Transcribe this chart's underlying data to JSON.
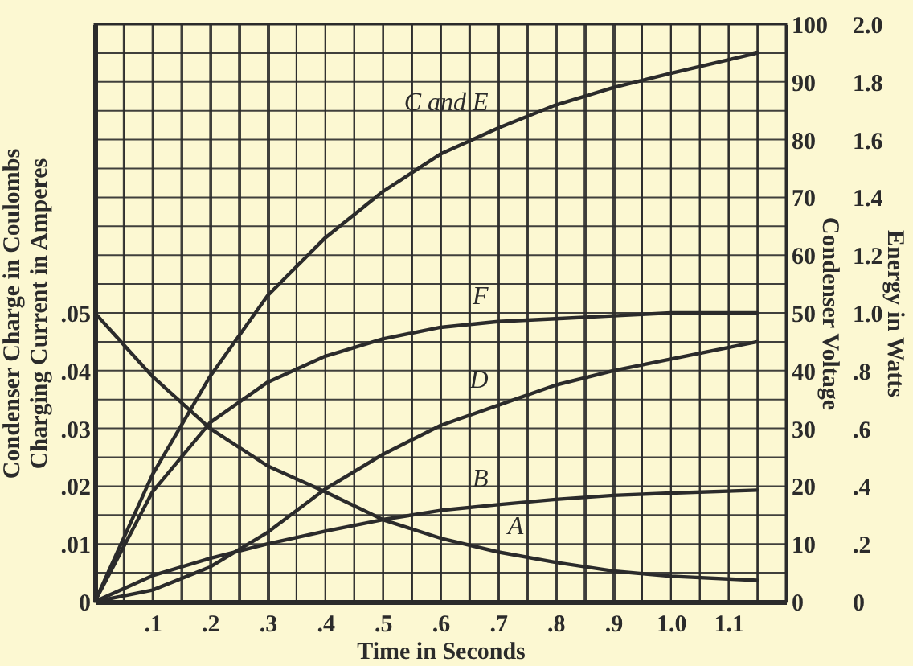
{
  "chart_data": {
    "type": "line",
    "xlabel": "Time in Seconds",
    "ylabel": "Condenser Charge in Coulombs\nCharging Current in Amperes",
    "y2label": "Condenser Voltage",
    "y3label": "Energy in Watts",
    "x": [
      0,
      0.1,
      0.2,
      0.3,
      0.4,
      0.5,
      0.6,
      0.7,
      0.8,
      0.9,
      1.0,
      1.15
    ],
    "xlim": [
      0,
      1.2
    ],
    "xticks": [
      {
        "value": 0,
        "label": null
      },
      {
        "value": 0.05,
        "label": null
      },
      {
        "value": 0.1,
        "label": ".1"
      },
      {
        "value": 0.15,
        "label": null
      },
      {
        "value": 0.2,
        "label": ".2"
      },
      {
        "value": 0.25,
        "label": null
      },
      {
        "value": 0.3,
        "label": ".3"
      },
      {
        "value": 0.35,
        "label": null
      },
      {
        "value": 0.4,
        "label": ".4"
      },
      {
        "value": 0.45,
        "label": null
      },
      {
        "value": 0.5,
        "label": ".5"
      },
      {
        "value": 0.55,
        "label": null
      },
      {
        "value": 0.6,
        "label": ".6"
      },
      {
        "value": 0.65,
        "label": null
      },
      {
        "value": 0.7,
        "label": ".7"
      },
      {
        "value": 0.75,
        "label": null
      },
      {
        "value": 0.8,
        "label": ".8"
      },
      {
        "value": 0.85,
        "label": null
      },
      {
        "value": 0.9,
        "label": ".9"
      },
      {
        "value": 0.95,
        "label": null
      },
      {
        "value": 1.0,
        "label": "1.0"
      },
      {
        "value": 1.05,
        "label": null
      },
      {
        "value": 1.1,
        "label": "1.1"
      },
      {
        "value": 1.15,
        "label": null
      },
      {
        "value": 1.2,
        "label": null
      }
    ],
    "ylim": [
      0,
      0.1
    ],
    "yticks": [
      0,
      {
        "value": 0.01,
        "label": ".01"
      },
      {
        "value": 0.02,
        "label": ".02"
      },
      {
        "value": 0.03,
        "label": ".03"
      },
      {
        "value": 0.04,
        "label": ".04"
      },
      {
        "value": 0.05,
        "label": ".05"
      }
    ],
    "y2lim": [
      0,
      100
    ],
    "y2ticks": [
      0,
      {
        "value": 5,
        "label": null
      },
      10,
      {
        "value": 15,
        "label": null
      },
      20,
      {
        "value": 25,
        "label": null
      },
      30,
      {
        "value": 35,
        "label": null
      },
      40,
      {
        "value": 45,
        "label": null
      },
      50,
      {
        "value": 55,
        "label": null
      },
      60,
      {
        "value": 65,
        "label": null
      },
      70,
      {
        "value": 75,
        "label": null
      },
      80,
      {
        "value": 85,
        "label": null
      },
      90,
      {
        "value": 95,
        "label": null
      },
      100
    ],
    "y3lim": [
      0,
      2
    ],
    "y3ticks": [
      0,
      {
        "value": 0.2,
        "label": ".2"
      },
      {
        "value": 0.4,
        "label": ".4"
      },
      {
        "value": 0.6,
        "label": ".6"
      },
      {
        "value": 0.8,
        "label": ".8"
      },
      {
        "value": 1.0,
        "label": "1.0"
      },
      1.2,
      1.4,
      1.6,
      1.8,
      {
        "value": 2.0,
        "label": "2.0"
      }
    ],
    "grid": true,
    "line_style": "solid",
    "marker": "none",
    "series": [
      {
        "name": "A",
        "color": "#2b2b2b",
        "axis": "y",
        "values": [
          0.05,
          0.039,
          0.03,
          0.0235,
          0.019,
          0.0142,
          0.011,
          0.0086,
          0.0068,
          0.0053,
          0.0044,
          0.0037
        ]
      },
      {
        "name": "B",
        "color": "#2b2b2b",
        "axis": "y",
        "values": [
          0,
          0.0045,
          0.0075,
          0.01,
          0.0122,
          0.0142,
          0.0158,
          0.0168,
          0.0177,
          0.0184,
          0.0188,
          0.0193
        ]
      },
      {
        "name": "C and E",
        "color": "#2b2b2b",
        "axis": "y2",
        "values": [
          0,
          22,
          39,
          53,
          63,
          71,
          77.5,
          82,
          86,
          89,
          91.5,
          95
        ]
      },
      {
        "name": "D",
        "color": "#2b2b2b",
        "axis": "y3",
        "values": [
          0,
          0.04,
          0.12,
          0.24,
          0.39,
          0.51,
          0.61,
          0.68,
          0.75,
          0.8,
          0.84,
          0.9
        ]
      },
      {
        "name": "F",
        "color": "#2b2b2b",
        "axis": "y3",
        "values": [
          0,
          0.38,
          0.62,
          0.76,
          0.85,
          0.91,
          0.95,
          0.97,
          0.98,
          0.99,
          1.0,
          1.0
        ]
      }
    ]
  }
}
